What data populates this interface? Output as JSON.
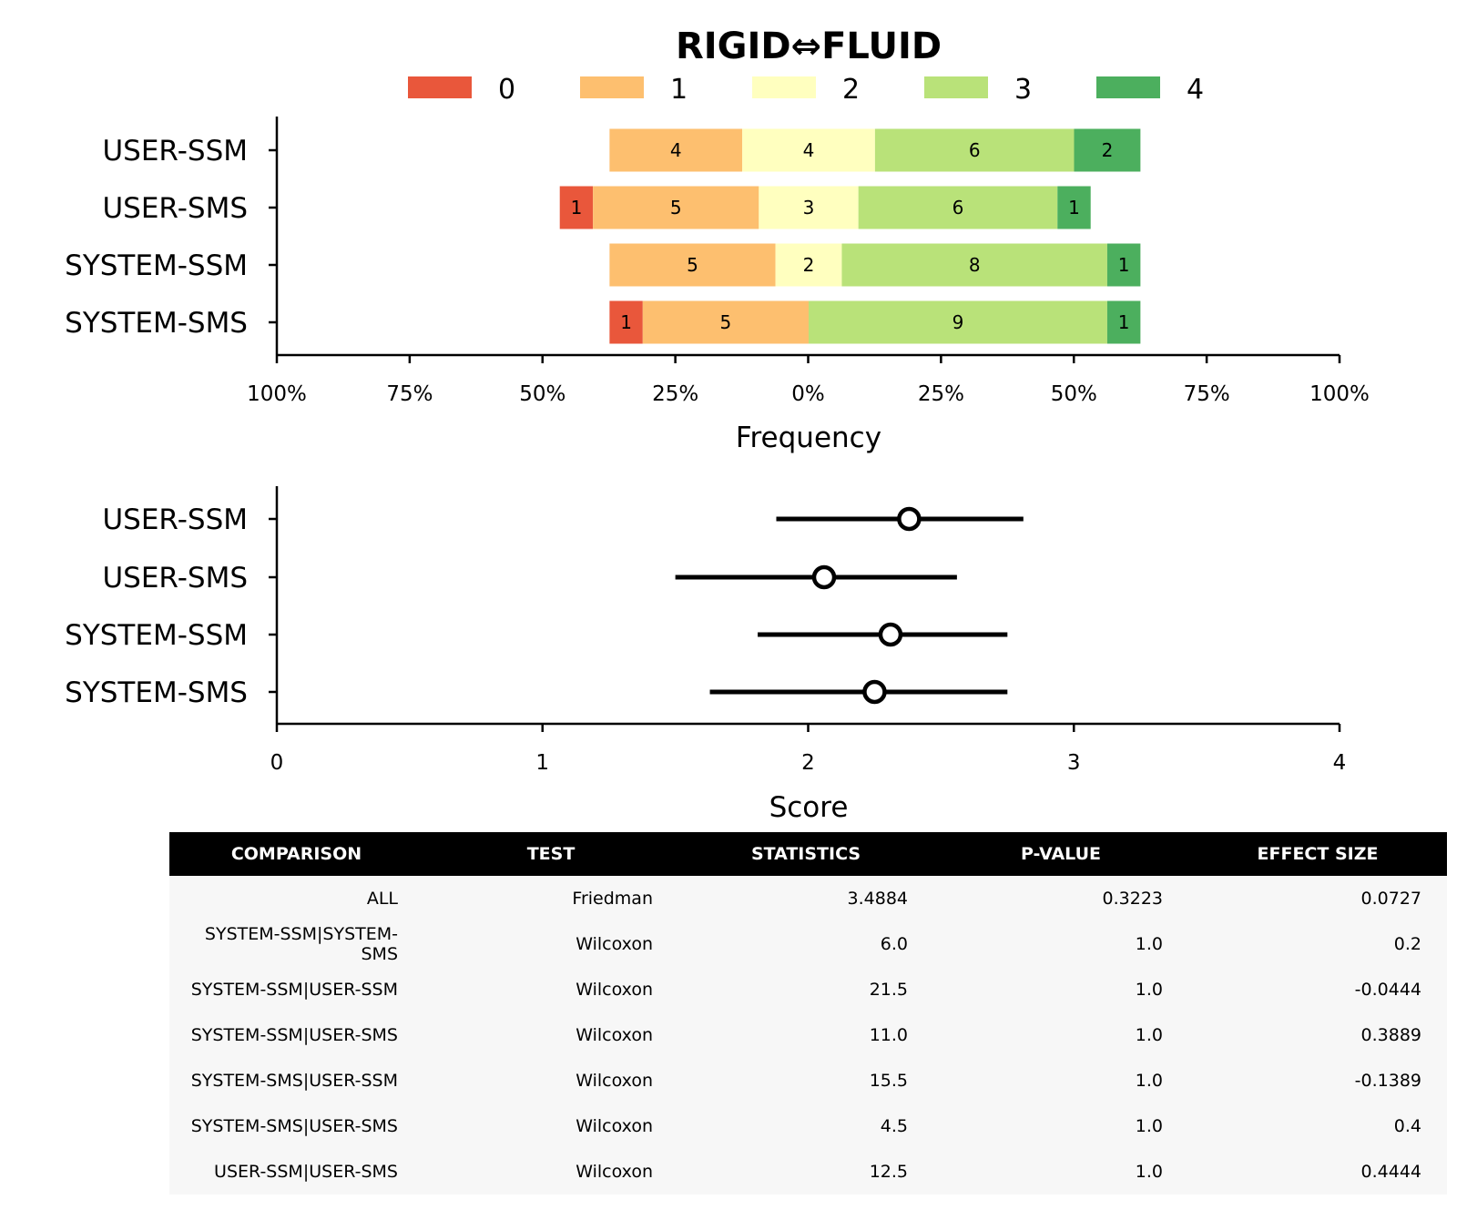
{
  "chart_data": [
    {
      "type": "bar",
      "stacked": "diverging",
      "title": "RIGID⇔FLUID",
      "xlabel": "Frequency",
      "ylabel": "",
      "categories": [
        "USER-SSM",
        "USER-SMS",
        "SYSTEM-SSM",
        "SYSTEM-SMS"
      ],
      "xlim": [
        -100,
        100
      ],
      "xticks": [
        "100%",
        "75%",
        "50%",
        "25%",
        "0%",
        "25%",
        "50%",
        "75%",
        "100%"
      ],
      "legend": {
        "placement": "top",
        "entries": [
          "0",
          "1",
          "2",
          "3",
          "4"
        ]
      },
      "series": [
        {
          "name": "0",
          "color": "#e9573b",
          "values": [
            0,
            1,
            0,
            1
          ]
        },
        {
          "name": "1",
          "color": "#fdbf6f",
          "values": [
            4,
            5,
            5,
            5
          ]
        },
        {
          "name": "2",
          "color": "#ffffbf",
          "values": [
            4,
            3,
            2,
            0
          ]
        },
        {
          "name": "3",
          "color": "#b9e279",
          "values": [
            6,
            6,
            8,
            9
          ]
        },
        {
          "name": "4",
          "color": "#4caf5e",
          "values": [
            2,
            1,
            1,
            1
          ]
        }
      ]
    },
    {
      "type": "scatter",
      "xlabel": "Score",
      "ylabel": "",
      "categories": [
        "USER-SSM",
        "USER-SMS",
        "SYSTEM-SSM",
        "SYSTEM-SMS"
      ],
      "xlim": [
        0,
        4
      ],
      "xticks": [
        "0",
        "1",
        "2",
        "3",
        "4"
      ],
      "points": [
        {
          "category": "USER-SSM",
          "mean": 2.38,
          "lower": 1.88,
          "upper": 2.81
        },
        {
          "category": "USER-SMS",
          "mean": 2.06,
          "lower": 1.5,
          "upper": 2.56
        },
        {
          "category": "SYSTEM-SSM",
          "mean": 2.31,
          "lower": 1.81,
          "upper": 2.75
        },
        {
          "category": "SYSTEM-SMS",
          "mean": 2.25,
          "lower": 1.63,
          "upper": 2.75
        }
      ]
    },
    {
      "type": "table",
      "columns": [
        "COMPARISON",
        "TEST",
        "STATISTICS",
        "P-VALUE",
        "EFFECT SIZE"
      ],
      "rows": [
        [
          "ALL",
          "Friedman",
          "3.4884",
          "0.3223",
          "0.0727"
        ],
        [
          "SYSTEM-SSM|SYSTEM-SMS",
          "Wilcoxon",
          "6.0",
          "1.0",
          "0.2"
        ],
        [
          "SYSTEM-SSM|USER-SSM",
          "Wilcoxon",
          "21.5",
          "1.0",
          "-0.0444"
        ],
        [
          "SYSTEM-SSM|USER-SMS",
          "Wilcoxon",
          "11.0",
          "1.0",
          "0.3889"
        ],
        [
          "SYSTEM-SMS|USER-SSM",
          "Wilcoxon",
          "15.5",
          "1.0",
          "-0.1389"
        ],
        [
          "SYSTEM-SMS|USER-SMS",
          "Wilcoxon",
          "4.5",
          "1.0",
          "0.4"
        ],
        [
          "USER-SSM|USER-SMS",
          "Wilcoxon",
          "12.5",
          "1.0",
          "0.4444"
        ]
      ]
    }
  ]
}
